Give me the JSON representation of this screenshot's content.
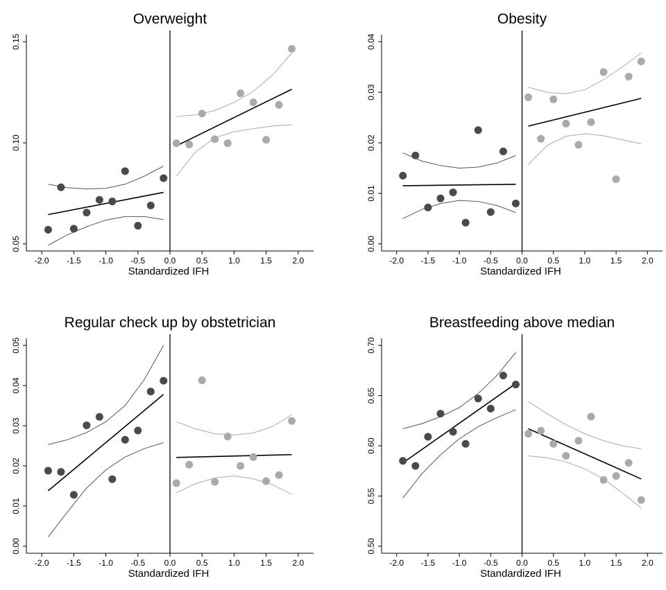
{
  "colors": {
    "left_points": "#4a4a4a",
    "right_points": "#aaaaaa",
    "fit": "#000000",
    "ci_left": "#555555",
    "ci_right": "#aaaaaa",
    "cutoff": "#000000"
  },
  "chart_data": [
    {
      "type": "scatter",
      "title": "Overweight",
      "xlabel": "Standardized IFH",
      "ylabel": "",
      "xlim": [
        -2.0,
        2.0
      ],
      "ylim": [
        0.05,
        0.15
      ],
      "xticks": [
        "-2.0",
        "-1.5",
        "-1.0",
        "-0.5",
        "0.0",
        "0.5",
        "1.0",
        "1.5",
        "2.0"
      ],
      "yticks": [
        "0.05",
        "0.10",
        "0.15"
      ],
      "cutoff": 0,
      "left_points": [
        [
          -1.9,
          0.057
        ],
        [
          -1.7,
          0.078
        ],
        [
          -1.5,
          0.0575
        ],
        [
          -1.3,
          0.0655
        ],
        [
          -1.1,
          0.0718
        ],
        [
          -0.9,
          0.071
        ],
        [
          -0.7,
          0.086
        ],
        [
          -0.5,
          0.059
        ],
        [
          -0.3,
          0.069
        ],
        [
          -0.1,
          0.0825
        ]
      ],
      "right_points": [
        [
          0.1,
          0.0998
        ],
        [
          0.3,
          0.0992
        ],
        [
          0.5,
          0.1145
        ],
        [
          0.7,
          0.1018
        ],
        [
          0.9,
          0.0998
        ],
        [
          1.1,
          0.1245
        ],
        [
          1.3,
          0.12
        ],
        [
          1.5,
          0.1015
        ],
        [
          1.7,
          0.1188
        ],
        [
          1.9,
          0.1465
        ]
      ],
      "fit_left": [
        [
          -1.9,
          0.0645
        ],
        [
          -0.1,
          0.0755
        ]
      ],
      "fit_right": [
        [
          0.1,
          0.0985
        ],
        [
          1.9,
          0.1265
        ]
      ],
      "ci_left_upper": [
        [
          -1.9,
          0.0795
        ],
        [
          -1.6,
          0.0778
        ],
        [
          -1.3,
          0.0772
        ],
        [
          -1.0,
          0.0775
        ],
        [
          -0.7,
          0.0795
        ],
        [
          -0.4,
          0.0835
        ],
        [
          -0.1,
          0.0885
        ]
      ],
      "ci_left_lower": [
        [
          -1.9,
          0.0493
        ],
        [
          -1.6,
          0.0545
        ],
        [
          -1.3,
          0.0585
        ],
        [
          -1.0,
          0.0618
        ],
        [
          -0.7,
          0.0635
        ],
        [
          -0.4,
          0.0635
        ],
        [
          -0.1,
          0.062
        ]
      ],
      "ci_right_upper": [
        [
          0.1,
          0.113
        ],
        [
          0.4,
          0.1138
        ],
        [
          0.7,
          0.116
        ],
        [
          1.0,
          0.12
        ],
        [
          1.3,
          0.1255
        ],
        [
          1.6,
          0.1335
        ],
        [
          1.9,
          0.1445
        ]
      ],
      "ci_right_lower": [
        [
          0.1,
          0.0835
        ],
        [
          0.4,
          0.0955
        ],
        [
          0.7,
          0.1025
        ],
        [
          1.0,
          0.1055
        ],
        [
          1.3,
          0.107
        ],
        [
          1.6,
          0.1083
        ],
        [
          1.9,
          0.109
        ]
      ]
    },
    {
      "type": "scatter",
      "title": "Obesity",
      "xlabel": "Standardized IFH",
      "ylabel": "",
      "xlim": [
        -2.0,
        2.0
      ],
      "ylim": [
        0.0,
        0.04
      ],
      "xticks": [
        "-2.0",
        "-1.5",
        "-1.0",
        "-0.5",
        "0.0",
        "0.5",
        "1.0",
        "1.5",
        "2.0"
      ],
      "yticks": [
        "0.00",
        "0.01",
        "0.02",
        "0.03",
        "0.04"
      ],
      "cutoff": 0,
      "left_points": [
        [
          -1.9,
          0.0135
        ],
        [
          -1.7,
          0.0175
        ],
        [
          -1.5,
          0.0072
        ],
        [
          -1.3,
          0.009
        ],
        [
          -1.1,
          0.0102
        ],
        [
          -0.9,
          0.0042
        ],
        [
          -0.7,
          0.0225
        ],
        [
          -0.5,
          0.0063
        ],
        [
          -0.3,
          0.0183
        ],
        [
          -0.1,
          0.008
        ]
      ],
      "right_points": [
        [
          0.1,
          0.029
        ],
        [
          0.3,
          0.0208
        ],
        [
          0.5,
          0.0286
        ],
        [
          0.7,
          0.0238
        ],
        [
          0.9,
          0.0196
        ],
        [
          1.1,
          0.0241
        ],
        [
          1.3,
          0.034
        ],
        [
          1.5,
          0.0128
        ],
        [
          1.7,
          0.0331
        ],
        [
          1.9,
          0.0361
        ]
      ],
      "fit_left": [
        [
          -1.9,
          0.0115
        ],
        [
          -0.1,
          0.0118
        ]
      ],
      "fit_right": [
        [
          0.1,
          0.0233
        ],
        [
          1.9,
          0.0288
        ]
      ],
      "ci_left_upper": [
        [
          -1.9,
          0.018
        ],
        [
          -1.6,
          0.0164
        ],
        [
          -1.3,
          0.0155
        ],
        [
          -1.0,
          0.015
        ],
        [
          -0.7,
          0.0152
        ],
        [
          -0.4,
          0.016
        ],
        [
          -0.1,
          0.0175
        ]
      ],
      "ci_left_lower": [
        [
          -1.9,
          0.005
        ],
        [
          -1.6,
          0.0068
        ],
        [
          -1.3,
          0.008
        ],
        [
          -1.0,
          0.0086
        ],
        [
          -0.7,
          0.0084
        ],
        [
          -0.4,
          0.0076
        ],
        [
          -0.1,
          0.0062
        ]
      ],
      "ci_right_upper": [
        [
          0.1,
          0.031
        ],
        [
          0.4,
          0.03
        ],
        [
          0.7,
          0.0297
        ],
        [
          1.0,
          0.0305
        ],
        [
          1.3,
          0.0325
        ],
        [
          1.6,
          0.035
        ],
        [
          1.9,
          0.0378
        ]
      ],
      "ci_right_lower": [
        [
          0.1,
          0.0157
        ],
        [
          0.4,
          0.0195
        ],
        [
          0.7,
          0.0213
        ],
        [
          1.0,
          0.0218
        ],
        [
          1.3,
          0.0214
        ],
        [
          1.6,
          0.0206
        ],
        [
          1.9,
          0.0198
        ]
      ]
    },
    {
      "type": "scatter",
      "title": "Regular check up by obstetrician",
      "xlabel": "Standardized IFH",
      "ylabel": "",
      "xlim": [
        -2.0,
        2.0
      ],
      "ylim": [
        0.0,
        0.05
      ],
      "xticks": [
        "-2.0",
        "-1.5",
        "-1.0",
        "-0.5",
        "0.0",
        "0.5",
        "1.0",
        "1.5",
        "2.0"
      ],
      "yticks": [
        "0.00",
        "0.01",
        "0.02",
        "0.03",
        "0.04",
        "0.05"
      ],
      "cutoff": 0,
      "left_points": [
        [
          -1.9,
          0.0188
        ],
        [
          -1.7,
          0.0185
        ],
        [
          -1.5,
          0.0128
        ],
        [
          -1.3,
          0.0301
        ],
        [
          -1.1,
          0.0322
        ],
        [
          -0.9,
          0.0167
        ],
        [
          -0.7,
          0.0265
        ],
        [
          -0.5,
          0.0288
        ],
        [
          -0.3,
          0.0385
        ],
        [
          -0.1,
          0.0412
        ]
      ],
      "right_points": [
        [
          0.1,
          0.0157
        ],
        [
          0.3,
          0.0203
        ],
        [
          0.5,
          0.0413
        ],
        [
          0.7,
          0.016
        ],
        [
          0.9,
          0.0273
        ],
        [
          1.1,
          0.02
        ],
        [
          1.3,
          0.0222
        ],
        [
          1.5,
          0.0162
        ],
        [
          1.7,
          0.0177
        ],
        [
          1.9,
          0.0312
        ]
      ],
      "fit_left": [
        [
          -1.9,
          0.0138
        ],
        [
          -0.1,
          0.0378
        ]
      ],
      "fit_right": [
        [
          0.1,
          0.0221
        ],
        [
          1.9,
          0.0228
        ]
      ],
      "ci_left_upper": [
        [
          -1.9,
          0.0253
        ],
        [
          -1.6,
          0.0265
        ],
        [
          -1.3,
          0.0283
        ],
        [
          -1.0,
          0.031
        ],
        [
          -0.7,
          0.035
        ],
        [
          -0.4,
          0.0415
        ],
        [
          -0.1,
          0.05
        ]
      ],
      "ci_left_lower": [
        [
          -1.9,
          0.0023
        ],
        [
          -1.6,
          0.0085
        ],
        [
          -1.3,
          0.0145
        ],
        [
          -1.0,
          0.019
        ],
        [
          -0.7,
          0.0222
        ],
        [
          -0.4,
          0.0243
        ],
        [
          -0.1,
          0.0258
        ]
      ],
      "ci_right_upper": [
        [
          0.1,
          0.031
        ],
        [
          0.4,
          0.0292
        ],
        [
          0.7,
          0.028
        ],
        [
          1.0,
          0.0277
        ],
        [
          1.3,
          0.0282
        ],
        [
          1.6,
          0.0298
        ],
        [
          1.9,
          0.0327
        ]
      ],
      "ci_right_lower": [
        [
          0.1,
          0.0133
        ],
        [
          0.4,
          0.0156
        ],
        [
          0.7,
          0.017
        ],
        [
          1.0,
          0.0175
        ],
        [
          1.3,
          0.0168
        ],
        [
          1.6,
          0.0153
        ],
        [
          1.9,
          0.0129
        ]
      ]
    },
    {
      "type": "scatter",
      "title": "Breastfeeding above median",
      "xlabel": "Standardized IFH",
      "ylabel": "",
      "xlim": [
        -2.0,
        2.0
      ],
      "ylim": [
        0.5,
        0.7
      ],
      "xticks": [
        "-2.0",
        "-1.5",
        "-1.0",
        "-0.5",
        "0.0",
        "0.5",
        "1.0",
        "1.5",
        "2.0"
      ],
      "yticks": [
        "0.50",
        "0.55",
        "0.60",
        "0.65",
        "0.70"
      ],
      "cutoff": 0,
      "left_points": [
        [
          -1.9,
          0.585
        ],
        [
          -1.7,
          0.58
        ],
        [
          -1.5,
          0.609
        ],
        [
          -1.3,
          0.632
        ],
        [
          -1.1,
          0.614
        ],
        [
          -0.9,
          0.602
        ],
        [
          -0.7,
          0.647
        ],
        [
          -0.5,
          0.637
        ],
        [
          -0.3,
          0.67
        ],
        [
          -0.1,
          0.661
        ]
      ],
      "right_points": [
        [
          0.1,
          0.612
        ],
        [
          0.3,
          0.615
        ],
        [
          0.5,
          0.602
        ],
        [
          0.7,
          0.59
        ],
        [
          0.9,
          0.605
        ],
        [
          1.1,
          0.629
        ],
        [
          1.3,
          0.566
        ],
        [
          1.5,
          0.57
        ],
        [
          1.7,
          0.583
        ],
        [
          1.9,
          0.546
        ]
      ],
      "fit_left": [
        [
          -1.9,
          0.583
        ],
        [
          -0.1,
          0.662
        ]
      ],
      "fit_right": [
        [
          0.1,
          0.617
        ],
        [
          1.9,
          0.567
        ]
      ],
      "ci_left_upper": [
        [
          -1.9,
          0.617
        ],
        [
          -1.6,
          0.622
        ],
        [
          -1.3,
          0.629
        ],
        [
          -1.0,
          0.638
        ],
        [
          -0.7,
          0.652
        ],
        [
          -0.4,
          0.67
        ],
        [
          -0.1,
          0.693
        ]
      ],
      "ci_left_lower": [
        [
          -1.9,
          0.548
        ],
        [
          -1.6,
          0.572
        ],
        [
          -1.3,
          0.591
        ],
        [
          -1.0,
          0.607
        ],
        [
          -0.7,
          0.619
        ],
        [
          -0.4,
          0.628
        ],
        [
          -0.1,
          0.636
        ]
      ],
      "ci_right_upper": [
        [
          0.1,
          0.644
        ],
        [
          0.4,
          0.632
        ],
        [
          0.7,
          0.621
        ],
        [
          1.0,
          0.612
        ],
        [
          1.3,
          0.605
        ],
        [
          1.6,
          0.6
        ],
        [
          1.9,
          0.597
        ]
      ],
      "ci_right_lower": [
        [
          0.1,
          0.59
        ],
        [
          0.4,
          0.588
        ],
        [
          0.7,
          0.584
        ],
        [
          1.0,
          0.577
        ],
        [
          1.3,
          0.567
        ],
        [
          1.6,
          0.553
        ],
        [
          1.9,
          0.538
        ]
      ]
    }
  ]
}
